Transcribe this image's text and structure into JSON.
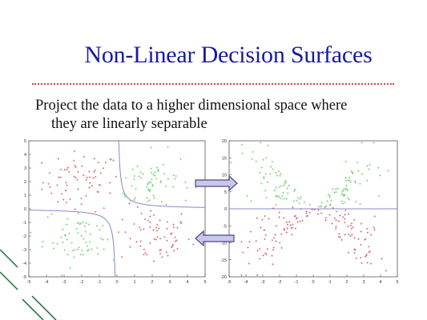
{
  "slide": {
    "title": "Non-Linear Decision Surfaces",
    "body_line1": "Project the data to a higher dimensional space where",
    "body_line2": "they are linearly separable"
  },
  "colors": {
    "title": "#1a1aa0",
    "rule": "#e04040",
    "class_red": "#d0606a",
    "class_green": "#6ccf6c",
    "boundary": "#8888c8",
    "arrow_fill": "#c8c8ee",
    "arrow_stroke": "#4a4a7a",
    "corner_lines": "#1f6b3a"
  },
  "chart_data": [
    {
      "type": "scatter",
      "name": "original-space",
      "xlim": [
        -5,
        5
      ],
      "ylim": [
        -5,
        5
      ],
      "xticks": [
        "-5",
        "-4",
        "-3",
        "-2",
        "-1",
        "0",
        "1",
        "2",
        "3",
        "4",
        "5"
      ],
      "yticks": [
        "5",
        "4",
        "3",
        "2",
        "1",
        "0",
        "-1",
        "-2",
        "-3",
        "-4",
        "-5"
      ],
      "clusters": [
        {
          "class": "red",
          "cx": -2,
          "cy": 2,
          "spread": 1.1,
          "n": 70
        },
        {
          "class": "red",
          "cx": 2,
          "cy": -2,
          "spread": 1.1,
          "n": 70
        },
        {
          "class": "green",
          "cx": 2,
          "cy": 2,
          "spread": 1.1,
          "n": 70
        },
        {
          "class": "green",
          "cx": -2,
          "cy": -2,
          "spread": 1.1,
          "n": 70
        }
      ],
      "decision_boundary": "xy = 0.5 (hyperbola)"
    },
    {
      "type": "scatter",
      "name": "projected-space",
      "xlim": [
        -5,
        5
      ],
      "ylim": [
        -20,
        20
      ],
      "xticks": [
        "-5",
        "-4",
        "-3",
        "-2",
        "-1",
        "0",
        "1",
        "2",
        "3",
        "4",
        "5"
      ],
      "yticks": [
        "20",
        "15",
        "10",
        "5",
        "0",
        "-5",
        "-10",
        "-15",
        "-20"
      ],
      "description_y": "y = x1*x2 projection",
      "decision_boundary": "y = 0 (horizontal line)"
    }
  ],
  "arrows": [
    {
      "direction": "right"
    },
    {
      "direction": "left"
    }
  ]
}
